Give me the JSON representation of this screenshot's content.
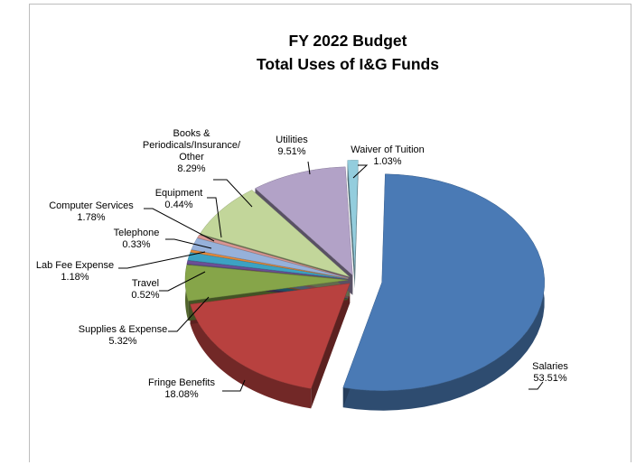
{
  "chart_data": {
    "type": "pie",
    "title": "FY 2022 Budget",
    "subtitle": "Total Uses of I&G Funds",
    "slices": [
      {
        "name": "Salaries",
        "value": 53.51,
        "value_label": "53.51%",
        "color": "#4a7ab5",
        "label_lines": [
          "Salaries"
        ]
      },
      {
        "name": "Fringe Benefits",
        "value": 18.08,
        "value_label": "18.08%",
        "color": "#b8413f",
        "label_lines": [
          "Fringe Benefits"
        ]
      },
      {
        "name": "Supplies & Expense",
        "value": 5.32,
        "value_label": "5.32%",
        "color": "#86a549",
        "label_lines": [
          "Supplies & Expense"
        ]
      },
      {
        "name": "Travel",
        "value": 0.52,
        "value_label": "0.52%",
        "color": "#6b4f95",
        "label_lines": [
          "Travel"
        ]
      },
      {
        "name": "Lab Fee Expense",
        "value": 1.18,
        "value_label": "1.18%",
        "color": "#3ca2c3",
        "label_lines": [
          "Lab Fee Expense"
        ]
      },
      {
        "name": "Telephone",
        "value": 0.33,
        "value_label": "0.33%",
        "color": "#e58a3c",
        "label_lines": [
          "Telephone"
        ]
      },
      {
        "name": "Computer Services",
        "value": 1.78,
        "value_label": "1.78%",
        "color": "#96b1da",
        "label_lines": [
          "Computer Services"
        ]
      },
      {
        "name": "Equipment",
        "value": 0.44,
        "value_label": "0.44%",
        "color": "#d99693",
        "label_lines": [
          "Equipment"
        ]
      },
      {
        "name": "Books & Periodicals/Insurance/ Other",
        "value": 8.29,
        "value_label": "8.29%",
        "color": "#c2d69a",
        "label_lines": [
          "Books &",
          "Periodicals/Insurance/",
          "Other"
        ]
      },
      {
        "name": "Utilities",
        "value": 9.51,
        "value_label": "9.51%",
        "color": "#b2a2c7",
        "label_lines": [
          "Utilities"
        ]
      },
      {
        "name": "Waiver of Tuition",
        "value": 1.03,
        "value_label": "1.03%",
        "color": "#93cddd",
        "label_lines": [
          "Waiver of Tuition"
        ]
      }
    ],
    "legend": "none",
    "style": "3d-exploded"
  }
}
